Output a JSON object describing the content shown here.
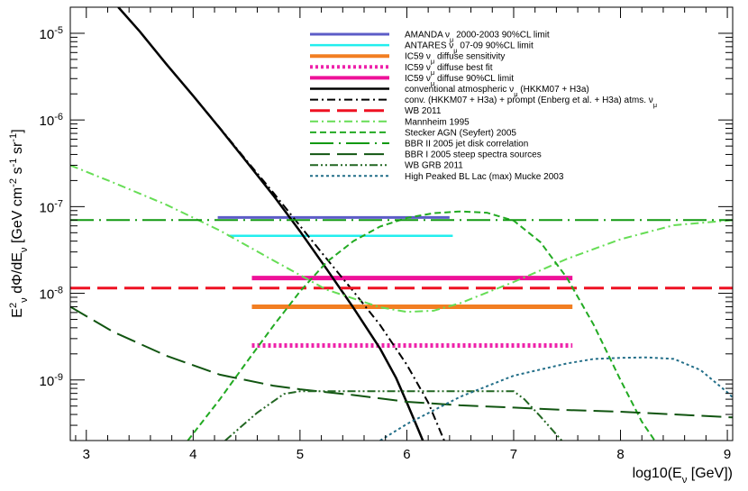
{
  "chart_data": {
    "type": "line",
    "xlabel": "log10(E_ν [GeV])",
    "ylabel": "E²_ν dΦ/dE_ν [GeV cm⁻² s⁻¹ sr⁻¹]",
    "xlim": [
      2.85,
      9.05
    ],
    "ylim": [
      2e-10,
      2e-05
    ],
    "y_scale": "log",
    "x_ticks": [
      3,
      4,
      5,
      6,
      7,
      8,
      9
    ],
    "x_tick_labels": [
      "3",
      "4",
      "5",
      "6",
      "7",
      "8",
      "9"
    ],
    "y_ticks": [
      1e-09,
      1e-08,
      1e-07,
      1e-06,
      1e-05
    ],
    "y_tick_labels": [
      {
        "base": "10",
        "exp": "-9"
      },
      {
        "base": "10",
        "exp": "-8"
      },
      {
        "base": "10",
        "exp": "-7"
      },
      {
        "base": "10",
        "exp": "-6"
      },
      {
        "base": "10",
        "exp": "-5"
      }
    ],
    "legend_position": "top-right",
    "series": [
      {
        "name": "AMANDA  ν_μ 2000-2003 90%CL limit",
        "color": "#5c5cc7",
        "style": "solid",
        "width": 3,
        "points": [
          [
            4.23,
            7.5e-08
          ],
          [
            6.4,
            7.5e-08
          ]
        ]
      },
      {
        "name": "ANTARES  ν_μ 07-09 90%CL limit",
        "color": "#22eeee",
        "style": "solid",
        "width": 2.5,
        "points": [
          [
            4.33,
            4.6e-08
          ],
          [
            6.43,
            4.6e-08
          ]
        ]
      },
      {
        "name": "IC59 ν_μ diffuse sensitivity",
        "color": "#f27e22",
        "style": "solid",
        "width": 5,
        "points": [
          [
            4.55,
            7e-09
          ],
          [
            7.55,
            7e-09
          ]
        ]
      },
      {
        "name": "IC59 ν_μ diffuse best fit",
        "color": "#ee22aa",
        "style": "dotted",
        "width": 5,
        "points": [
          [
            4.55,
            2.5e-09
          ],
          [
            7.55,
            2.5e-09
          ]
        ]
      },
      {
        "name": "IC59 ν_μ diffuse 90%CL limit",
        "color": "#ee1199",
        "style": "solid",
        "width": 5,
        "points": [
          [
            4.55,
            1.5e-08
          ],
          [
            7.55,
            1.5e-08
          ]
        ]
      },
      {
        "name": "conventional atmospheric ν_μ (HKKM07 + H3a)",
        "color": "#000000",
        "style": "solid",
        "width": 2.5,
        "points": [
          [
            3.3,
            2e-05
          ],
          [
            3.5,
            1.05e-05
          ],
          [
            3.75,
            4.4e-06
          ],
          [
            4.0,
            1.9e-06
          ],
          [
            4.25,
            8e-07
          ],
          [
            4.5,
            3.3e-07
          ],
          [
            4.75,
            1.35e-07
          ],
          [
            5.0,
            5.2e-08
          ],
          [
            5.25,
            1.9e-08
          ],
          [
            5.5,
            6.8e-09
          ],
          [
            5.75,
            2.3e-09
          ],
          [
            5.9,
            1.05e-09
          ],
          [
            6.0,
            5.5e-10
          ],
          [
            6.1,
            2.8e-10
          ],
          [
            6.15,
            2e-10
          ]
        ]
      },
      {
        "name": "conv. (HKKM07 + H3a) + prompt (Enberg et al. + H3a) atms. ν_μ",
        "color": "#000000",
        "style": "dashdot",
        "width": 2,
        "points": [
          [
            3.3,
            2e-05
          ],
          [
            3.5,
            1.05e-05
          ],
          [
            3.75,
            4.4e-06
          ],
          [
            4.0,
            1.9e-06
          ],
          [
            4.25,
            8.1e-07
          ],
          [
            4.5,
            3.4e-07
          ],
          [
            4.75,
            1.45e-07
          ],
          [
            5.0,
            6e-08
          ],
          [
            5.25,
            2.5e-08
          ],
          [
            5.5,
            1.05e-08
          ],
          [
            5.75,
            4.3e-09
          ],
          [
            6.0,
            1.5e-09
          ],
          [
            6.2,
            5.5e-10
          ],
          [
            6.35,
            2e-10
          ]
        ]
      },
      {
        "name": "WB 2011",
        "color": "#ee1122",
        "style": "longdash",
        "width": 3,
        "points": [
          [
            2.85,
            1.15e-08
          ],
          [
            9.05,
            1.15e-08
          ]
        ]
      },
      {
        "name": "Mannheim 1995",
        "color": "#66dd55",
        "style": "dashdot",
        "width": 2,
        "points": [
          [
            2.85,
            3e-07
          ],
          [
            3.25,
            1.9e-07
          ],
          [
            3.75,
            1.05e-07
          ],
          [
            4.25,
            5.3e-08
          ],
          [
            4.75,
            2.4e-08
          ],
          [
            5.25,
            1.1e-08
          ],
          [
            5.75,
            6.9e-09
          ],
          [
            6.0,
            6.1e-09
          ],
          [
            6.25,
            6.3e-09
          ],
          [
            6.5,
            7.7e-09
          ],
          [
            7.0,
            1.35e-08
          ],
          [
            7.5,
            2.5e-08
          ],
          [
            8.0,
            4.2e-08
          ],
          [
            8.5,
            6.1e-08
          ],
          [
            9.05,
            7e-08
          ]
        ]
      },
      {
        "name": "Stecker AGN (Seyfert) 2005",
        "color": "#22aa22",
        "style": "dashed",
        "width": 2,
        "points": [
          [
            3.95,
            2e-10
          ],
          [
            4.25,
            6e-10
          ],
          [
            4.5,
            1.6e-09
          ],
          [
            4.75,
            4.2e-09
          ],
          [
            5.0,
            1.05e-08
          ],
          [
            5.25,
            2.3e-08
          ],
          [
            5.5,
            4e-08
          ],
          [
            5.75,
            5.9e-08
          ],
          [
            6.0,
            7.4e-08
          ],
          [
            6.25,
            8.4e-08
          ],
          [
            6.5,
            8.8e-08
          ],
          [
            6.75,
            8.5e-08
          ],
          [
            7.0,
            6.9e-08
          ],
          [
            7.25,
            3.9e-08
          ],
          [
            7.5,
            1.5e-08
          ],
          [
            7.75,
            4.3e-09
          ],
          [
            8.0,
            1e-09
          ],
          [
            8.2,
            3.3e-10
          ],
          [
            8.32,
            2e-10
          ]
        ]
      },
      {
        "name": "BBR II 2005 jet disk correlation",
        "color": "#119911",
        "style": "longdashdot",
        "width": 2,
        "points": [
          [
            2.85,
            7e-08
          ],
          [
            9.05,
            7e-08
          ]
        ]
      },
      {
        "name": "BBR I 2005 steep spectra sources",
        "color": "#115511",
        "style": "longdash",
        "width": 2,
        "points": [
          [
            2.85,
            7e-09
          ],
          [
            3.25,
            3.6e-09
          ],
          [
            3.75,
            1.9e-09
          ],
          [
            4.25,
            1.15e-09
          ],
          [
            4.75,
            8.6e-10
          ],
          [
            5.0,
            7.8e-10
          ],
          [
            5.5,
            6.7e-10
          ],
          [
            6.0,
            5.6e-10
          ],
          [
            6.5,
            5.1e-10
          ],
          [
            7.0,
            4.8e-10
          ],
          [
            7.5,
            4.5e-10
          ],
          [
            8.0,
            4.3e-10
          ],
          [
            8.5,
            4e-10
          ],
          [
            9.05,
            3.7e-10
          ]
        ]
      },
      {
        "name": "WB GRB 2011",
        "color": "#226622",
        "style": "dashdotdot",
        "width": 2,
        "points": [
          [
            4.3,
            2e-10
          ],
          [
            4.6,
            4.2e-10
          ],
          [
            4.85,
            6.9e-10
          ],
          [
            5.0,
            7.4e-10
          ],
          [
            5.5,
            7.4e-10
          ],
          [
            6.0,
            7.4e-10
          ],
          [
            6.5,
            7.4e-10
          ],
          [
            7.0,
            7.4e-10
          ],
          [
            7.1,
            6e-10
          ],
          [
            7.25,
            3.8e-10
          ],
          [
            7.45,
            2e-10
          ]
        ]
      },
      {
        "name": "High Peaked BL Lac (max) Mucke 2003",
        "color": "#226e88",
        "style": "dotted",
        "width": 2,
        "points": [
          [
            5.75,
            2e-10
          ],
          [
            6.0,
            3.1e-10
          ],
          [
            6.5,
            6.4e-10
          ],
          [
            7.0,
            1.12e-09
          ],
          [
            7.5,
            1.55e-09
          ],
          [
            7.75,
            1.75e-09
          ],
          [
            8.0,
            1.8e-09
          ],
          [
            8.25,
            1.82e-09
          ],
          [
            8.5,
            1.75e-09
          ],
          [
            8.75,
            1.3e-09
          ],
          [
            9.0,
            7.2e-10
          ],
          [
            9.05,
            6.3e-10
          ]
        ]
      }
    ]
  }
}
